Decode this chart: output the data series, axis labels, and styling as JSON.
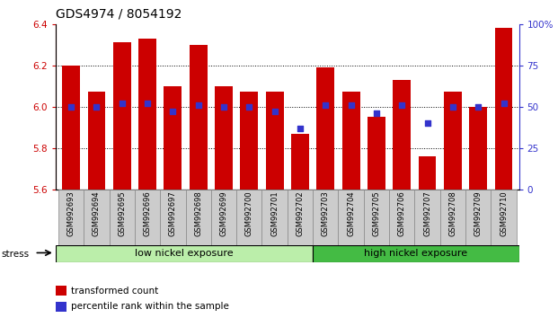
{
  "title": "GDS4974 / 8054192",
  "samples": [
    "GSM992693",
    "GSM992694",
    "GSM992695",
    "GSM992696",
    "GSM992697",
    "GSM992698",
    "GSM992699",
    "GSM992700",
    "GSM992701",
    "GSM992702",
    "GSM992703",
    "GSM992704",
    "GSM992705",
    "GSM992706",
    "GSM992707",
    "GSM992708",
    "GSM992709",
    "GSM992710"
  ],
  "red_values": [
    6.2,
    6.07,
    6.31,
    6.33,
    6.1,
    6.3,
    6.1,
    6.07,
    6.07,
    5.87,
    6.19,
    6.07,
    5.95,
    6.13,
    5.76,
    6.07,
    6.0,
    6.38
  ],
  "blue_values": [
    50,
    50,
    52,
    52,
    47,
    51,
    50,
    50,
    47,
    37,
    51,
    51,
    46,
    51,
    40,
    50,
    50,
    52
  ],
  "ylim_left": [
    5.6,
    6.4
  ],
  "ylim_right": [
    0,
    100
  ],
  "bar_color": "#cc0000",
  "dot_color": "#3333cc",
  "bar_bottom": 5.6,
  "group1_label": "low nickel exposure",
  "group2_label": "high nickel exposure",
  "group1_count": 10,
  "group2_count": 8,
  "stress_label": "stress",
  "legend1": "transformed count",
  "legend2": "percentile rank within the sample",
  "yticks_left": [
    5.6,
    5.8,
    6.0,
    6.2,
    6.4
  ],
  "yticks_right": [
    0,
    25,
    50,
    75,
    100
  ],
  "tick_label_color_left": "#cc0000",
  "tick_label_color_right": "#3333cc",
  "title_fontsize": 10,
  "bar_width": 0.7,
  "group1_color": "#bbeeaa",
  "group2_color": "#44bb44",
  "label_bg_color": "#cccccc",
  "label_edge_color": "#888888"
}
